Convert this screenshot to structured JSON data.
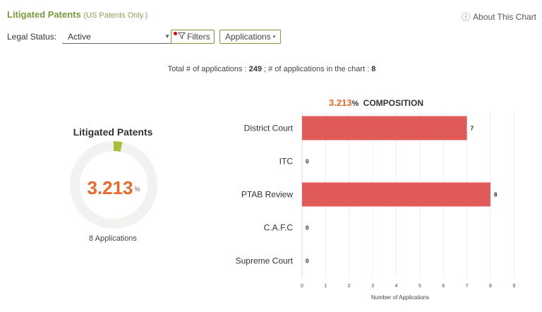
{
  "header": {
    "title": "Litigated Patents",
    "subtitle": "(US Patents Only.)",
    "about_icon": "info-circle-icon",
    "about_label": "About This Chart"
  },
  "controls": {
    "legal_status_label": "Legal Status:",
    "legal_status_value": "Active",
    "filters_label": "Filters",
    "applications_label": "Applications",
    "filter_indicator_color": "#dd0000"
  },
  "summary": {
    "prefix": "Total # of applications : ",
    "total": "249",
    "middle": " ; # of applications in the chart : ",
    "in_chart": "8"
  },
  "donut": {
    "title": "Litigated Patents",
    "value": "3.213",
    "unit": "%",
    "percent": 3.213,
    "caption": "8 Applications",
    "track_color": "#f1f3f0",
    "fill_color": "#a8bd3a"
  },
  "chart_data": {
    "type": "bar",
    "orientation": "horizontal",
    "title_value": "3.213",
    "title_unit": "%",
    "title_text": "COMPOSITION",
    "categories": [
      "District Court",
      "ITC",
      "PTAB Review",
      "C.A.F.C",
      "Supreme Court"
    ],
    "values": [
      7,
      0,
      8,
      0,
      0
    ],
    "xlabel": "Number of Applications",
    "xlim": [
      0,
      9.5
    ],
    "xticks": [
      0,
      1,
      2,
      3,
      4,
      5,
      6,
      7,
      8,
      9
    ],
    "bar_color": "#e05a5a",
    "grid": true
  }
}
